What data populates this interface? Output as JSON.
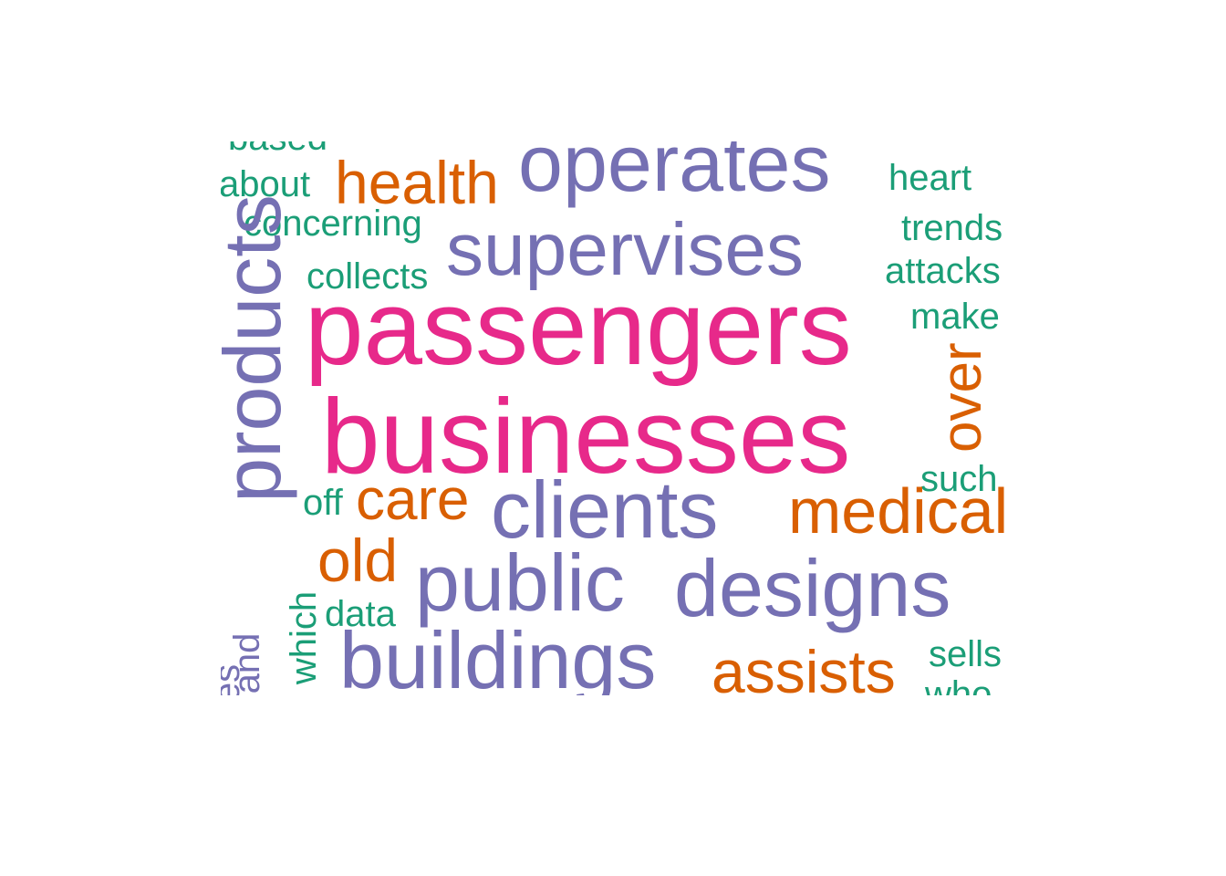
{
  "palette": {
    "pink": "#e7298a",
    "purple": "#7570b3",
    "orange": "#d95f02",
    "green": "#1b9e77"
  },
  "words": {
    "passengers": "passengers",
    "businesses": "businesses",
    "operates": "operates",
    "supervises": "supervises",
    "products": "products",
    "clients": "clients",
    "public": "public",
    "designs": "designs",
    "buildings": "buildings",
    "health": "health",
    "care": "care",
    "medical": "medical",
    "old": "old",
    "assists": "assists",
    "over": "over",
    "about": "about",
    "concerning": "concerning",
    "collects": "collects",
    "heart": "heart",
    "trends": "trends",
    "attacks": "attacks",
    "make": "make",
    "such": "such",
    "off": "off",
    "data": "data",
    "which": "which",
    "and": "and",
    "es": "es",
    "sells": "sells",
    "who": "who",
    "based": "based"
  }
}
